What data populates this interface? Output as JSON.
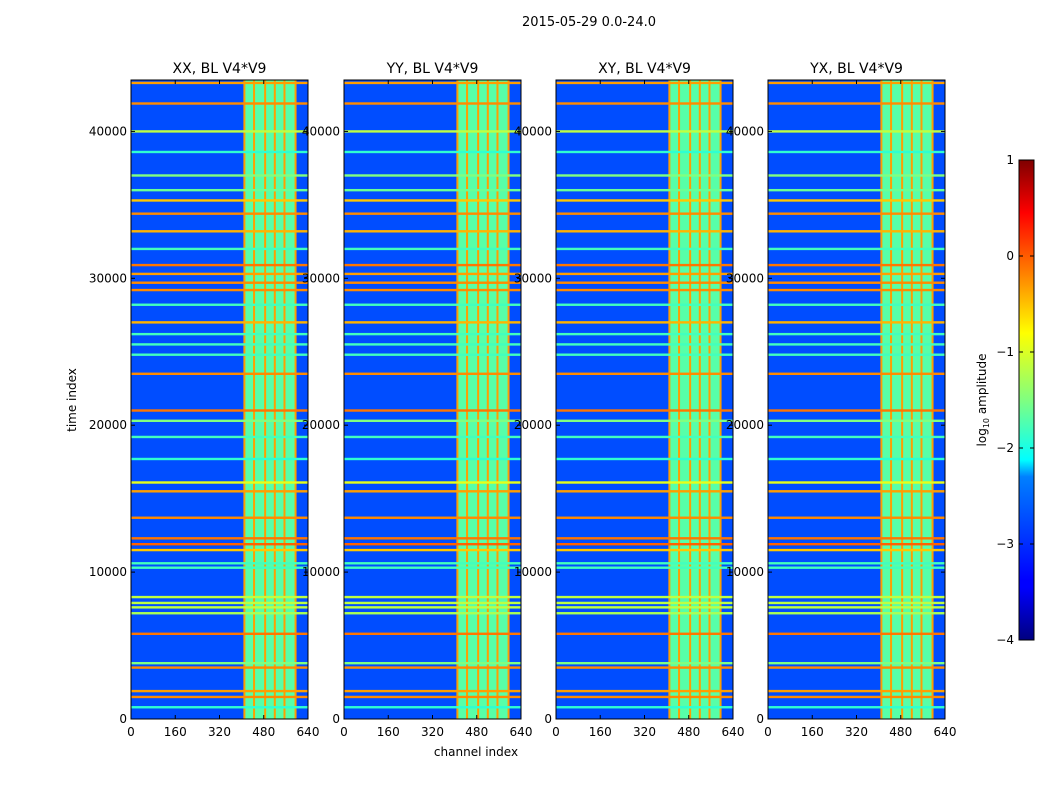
{
  "figure": {
    "suptitle": "2015-05-29 0.0-24.0",
    "xlabel": "channel index",
    "ylabel": "time index",
    "colorbar_label_prefix": "log",
    "colorbar_label_sub": "10",
    "colorbar_label_suffix": " amplitude"
  },
  "chart_data": {
    "type": "heatmap",
    "colormap": "jet",
    "xlim": [
      0,
      640
    ],
    "ylim": [
      0,
      43500
    ],
    "xticks": [
      0,
      160,
      320,
      480,
      640
    ],
    "yticks": [
      0,
      10000,
      20000,
      30000,
      40000
    ],
    "color_range": [
      -4,
      1
    ],
    "colorbar_ticks": [
      1,
      0,
      -1,
      -2,
      -3,
      -4
    ],
    "colorbar_tick_labels": [
      "1",
      "0",
      "−1",
      "−2",
      "−3",
      "−4"
    ],
    "background_level": -3.0,
    "band": {
      "x_range": [
        410,
        595
      ],
      "level": -1.7,
      "column_edges": [
        410,
        445,
        485,
        520,
        555,
        595
      ]
    },
    "flagged_rows": [
      {
        "y": 800,
        "level": -1.9
      },
      {
        "y": 1500,
        "level": -0.3
      },
      {
        "y": 1900,
        "level": -0.4
      },
      {
        "y": 3500,
        "level": -0.3
      },
      {
        "y": 3800,
        "level": -1.5
      },
      {
        "y": 5800,
        "level": -0.2
      },
      {
        "y": 7200,
        "level": -1.3
      },
      {
        "y": 7600,
        "level": -1.2
      },
      {
        "y": 7900,
        "level": -1.2
      },
      {
        "y": 8300,
        "level": -1.2
      },
      {
        "y": 10300,
        "level": -1.8
      },
      {
        "y": 10600,
        "level": -1.8
      },
      {
        "y": 11500,
        "level": -0.6
      },
      {
        "y": 11900,
        "level": -0.1
      },
      {
        "y": 12300,
        "level": -0.2
      },
      {
        "y": 13700,
        "level": -0.3
      },
      {
        "y": 15500,
        "level": -0.4
      },
      {
        "y": 16100,
        "level": -1.0
      },
      {
        "y": 17700,
        "level": -1.9
      },
      {
        "y": 19200,
        "level": -1.8
      },
      {
        "y": 20300,
        "level": -1.5
      },
      {
        "y": 21000,
        "level": -0.2
      },
      {
        "y": 23500,
        "level": -0.3
      },
      {
        "y": 24800,
        "level": -1.8
      },
      {
        "y": 25500,
        "level": -1.8
      },
      {
        "y": 26200,
        "level": -1.8
      },
      {
        "y": 27000,
        "level": -0.5
      },
      {
        "y": 28200,
        "level": -1.8
      },
      {
        "y": 29200,
        "level": -0.3
      },
      {
        "y": 29700,
        "level": -0.3
      },
      {
        "y": 30300,
        "level": -0.4
      },
      {
        "y": 30900,
        "level": -0.2
      },
      {
        "y": 32000,
        "level": -1.8
      },
      {
        "y": 33200,
        "level": -0.5
      },
      {
        "y": 34400,
        "level": -0.3
      },
      {
        "y": 35300,
        "level": -0.6
      },
      {
        "y": 36000,
        "level": -1.6
      },
      {
        "y": 37000,
        "level": -1.5
      },
      {
        "y": 38600,
        "level": -1.9
      },
      {
        "y": 40000,
        "level": -1.2
      },
      {
        "y": 41900,
        "level": -0.3
      },
      {
        "y": 43300,
        "level": -0.4
      }
    ],
    "panels": [
      {
        "title": "XX, BL V4*V9"
      },
      {
        "title": "YY, BL V4*V9"
      },
      {
        "title": "XY, BL V4*V9"
      },
      {
        "title": "YX, BL V4*V9"
      }
    ]
  }
}
